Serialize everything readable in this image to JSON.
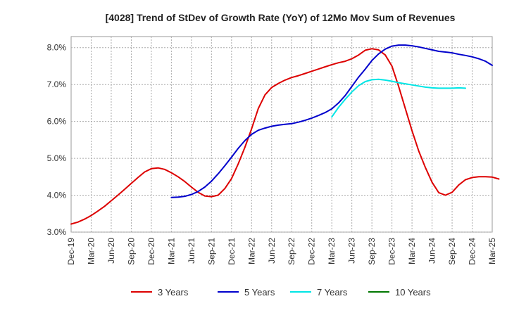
{
  "chart_data": {
    "type": "line",
    "title": "[4028]  Trend of StDev of Growth Rate (YoY) of 12Mo Mov Sum of Revenues",
    "xlabel": "",
    "ylabel": "",
    "x_tick_labels": [
      "Dec-19",
      "Mar-20",
      "Jun-20",
      "Sep-20",
      "Dec-20",
      "Mar-21",
      "Jun-21",
      "Sep-21",
      "Dec-21",
      "Mar-22",
      "Jun-22",
      "Sep-22",
      "Dec-22",
      "Mar-23",
      "Jun-23",
      "Sep-23",
      "Dec-23",
      "Mar-24",
      "Jun-24",
      "Sep-24",
      "Dec-24",
      "Mar-25"
    ],
    "y_tick_labels": [
      "3.0%",
      "4.0%",
      "5.0%",
      "6.0%",
      "7.0%",
      "8.0%"
    ],
    "y_ticks": [
      3.0,
      4.0,
      5.0,
      6.0,
      7.0,
      8.0
    ],
    "ylim": [
      3.0,
      8.3
    ],
    "x_range_months": [
      0,
      63
    ],
    "grid": true,
    "legend_position": "bottom",
    "series": [
      {
        "name": "3 Years",
        "color": "#dd0000",
        "start_month": 0,
        "values": [
          3.22,
          3.27,
          3.35,
          3.45,
          3.57,
          3.7,
          3.85,
          4.0,
          4.16,
          4.32,
          4.48,
          4.63,
          4.72,
          4.74,
          4.7,
          4.61,
          4.5,
          4.37,
          4.22,
          4.08,
          3.98,
          3.96,
          4.0,
          4.18,
          4.45,
          4.85,
          5.3,
          5.8,
          6.35,
          6.72,
          6.92,
          7.03,
          7.12,
          7.19,
          7.24,
          7.3,
          7.36,
          7.42,
          7.48,
          7.54,
          7.59,
          7.63,
          7.7,
          7.8,
          7.93,
          7.97,
          7.94,
          7.8,
          7.5,
          6.95,
          6.35,
          5.75,
          5.2,
          4.75,
          4.35,
          4.07,
          4.0,
          4.08,
          4.28,
          4.42,
          4.48,
          4.5,
          4.5,
          4.49,
          4.44
        ]
      },
      {
        "name": "5 Years",
        "color": "#0000cc",
        "start_month": 15,
        "values": [
          3.94,
          3.95,
          3.97,
          4.02,
          4.1,
          4.22,
          4.38,
          4.58,
          4.8,
          5.03,
          5.27,
          5.48,
          5.65,
          5.76,
          5.82,
          5.87,
          5.9,
          5.92,
          5.94,
          5.98,
          6.03,
          6.09,
          6.16,
          6.24,
          6.34,
          6.5,
          6.7,
          6.95,
          7.2,
          7.42,
          7.65,
          7.83,
          7.96,
          8.04,
          8.07,
          8.07,
          8.05,
          8.02,
          7.98,
          7.94,
          7.9,
          7.88,
          7.86,
          7.82,
          7.79,
          7.75,
          7.7,
          7.63,
          7.52
        ]
      },
      {
        "name": "7 Years",
        "color": "#00e5e5",
        "start_month": 39,
        "values": [
          6.12,
          6.38,
          6.6,
          6.8,
          6.97,
          7.08,
          7.13,
          7.14,
          7.12,
          7.09,
          7.05,
          7.02,
          6.99,
          6.96,
          6.93,
          6.91,
          6.9,
          6.9,
          6.9,
          6.91,
          6.9
        ]
      },
      {
        "name": "10 Years",
        "color": "#007700",
        "start_month": 0,
        "values": []
      }
    ]
  }
}
